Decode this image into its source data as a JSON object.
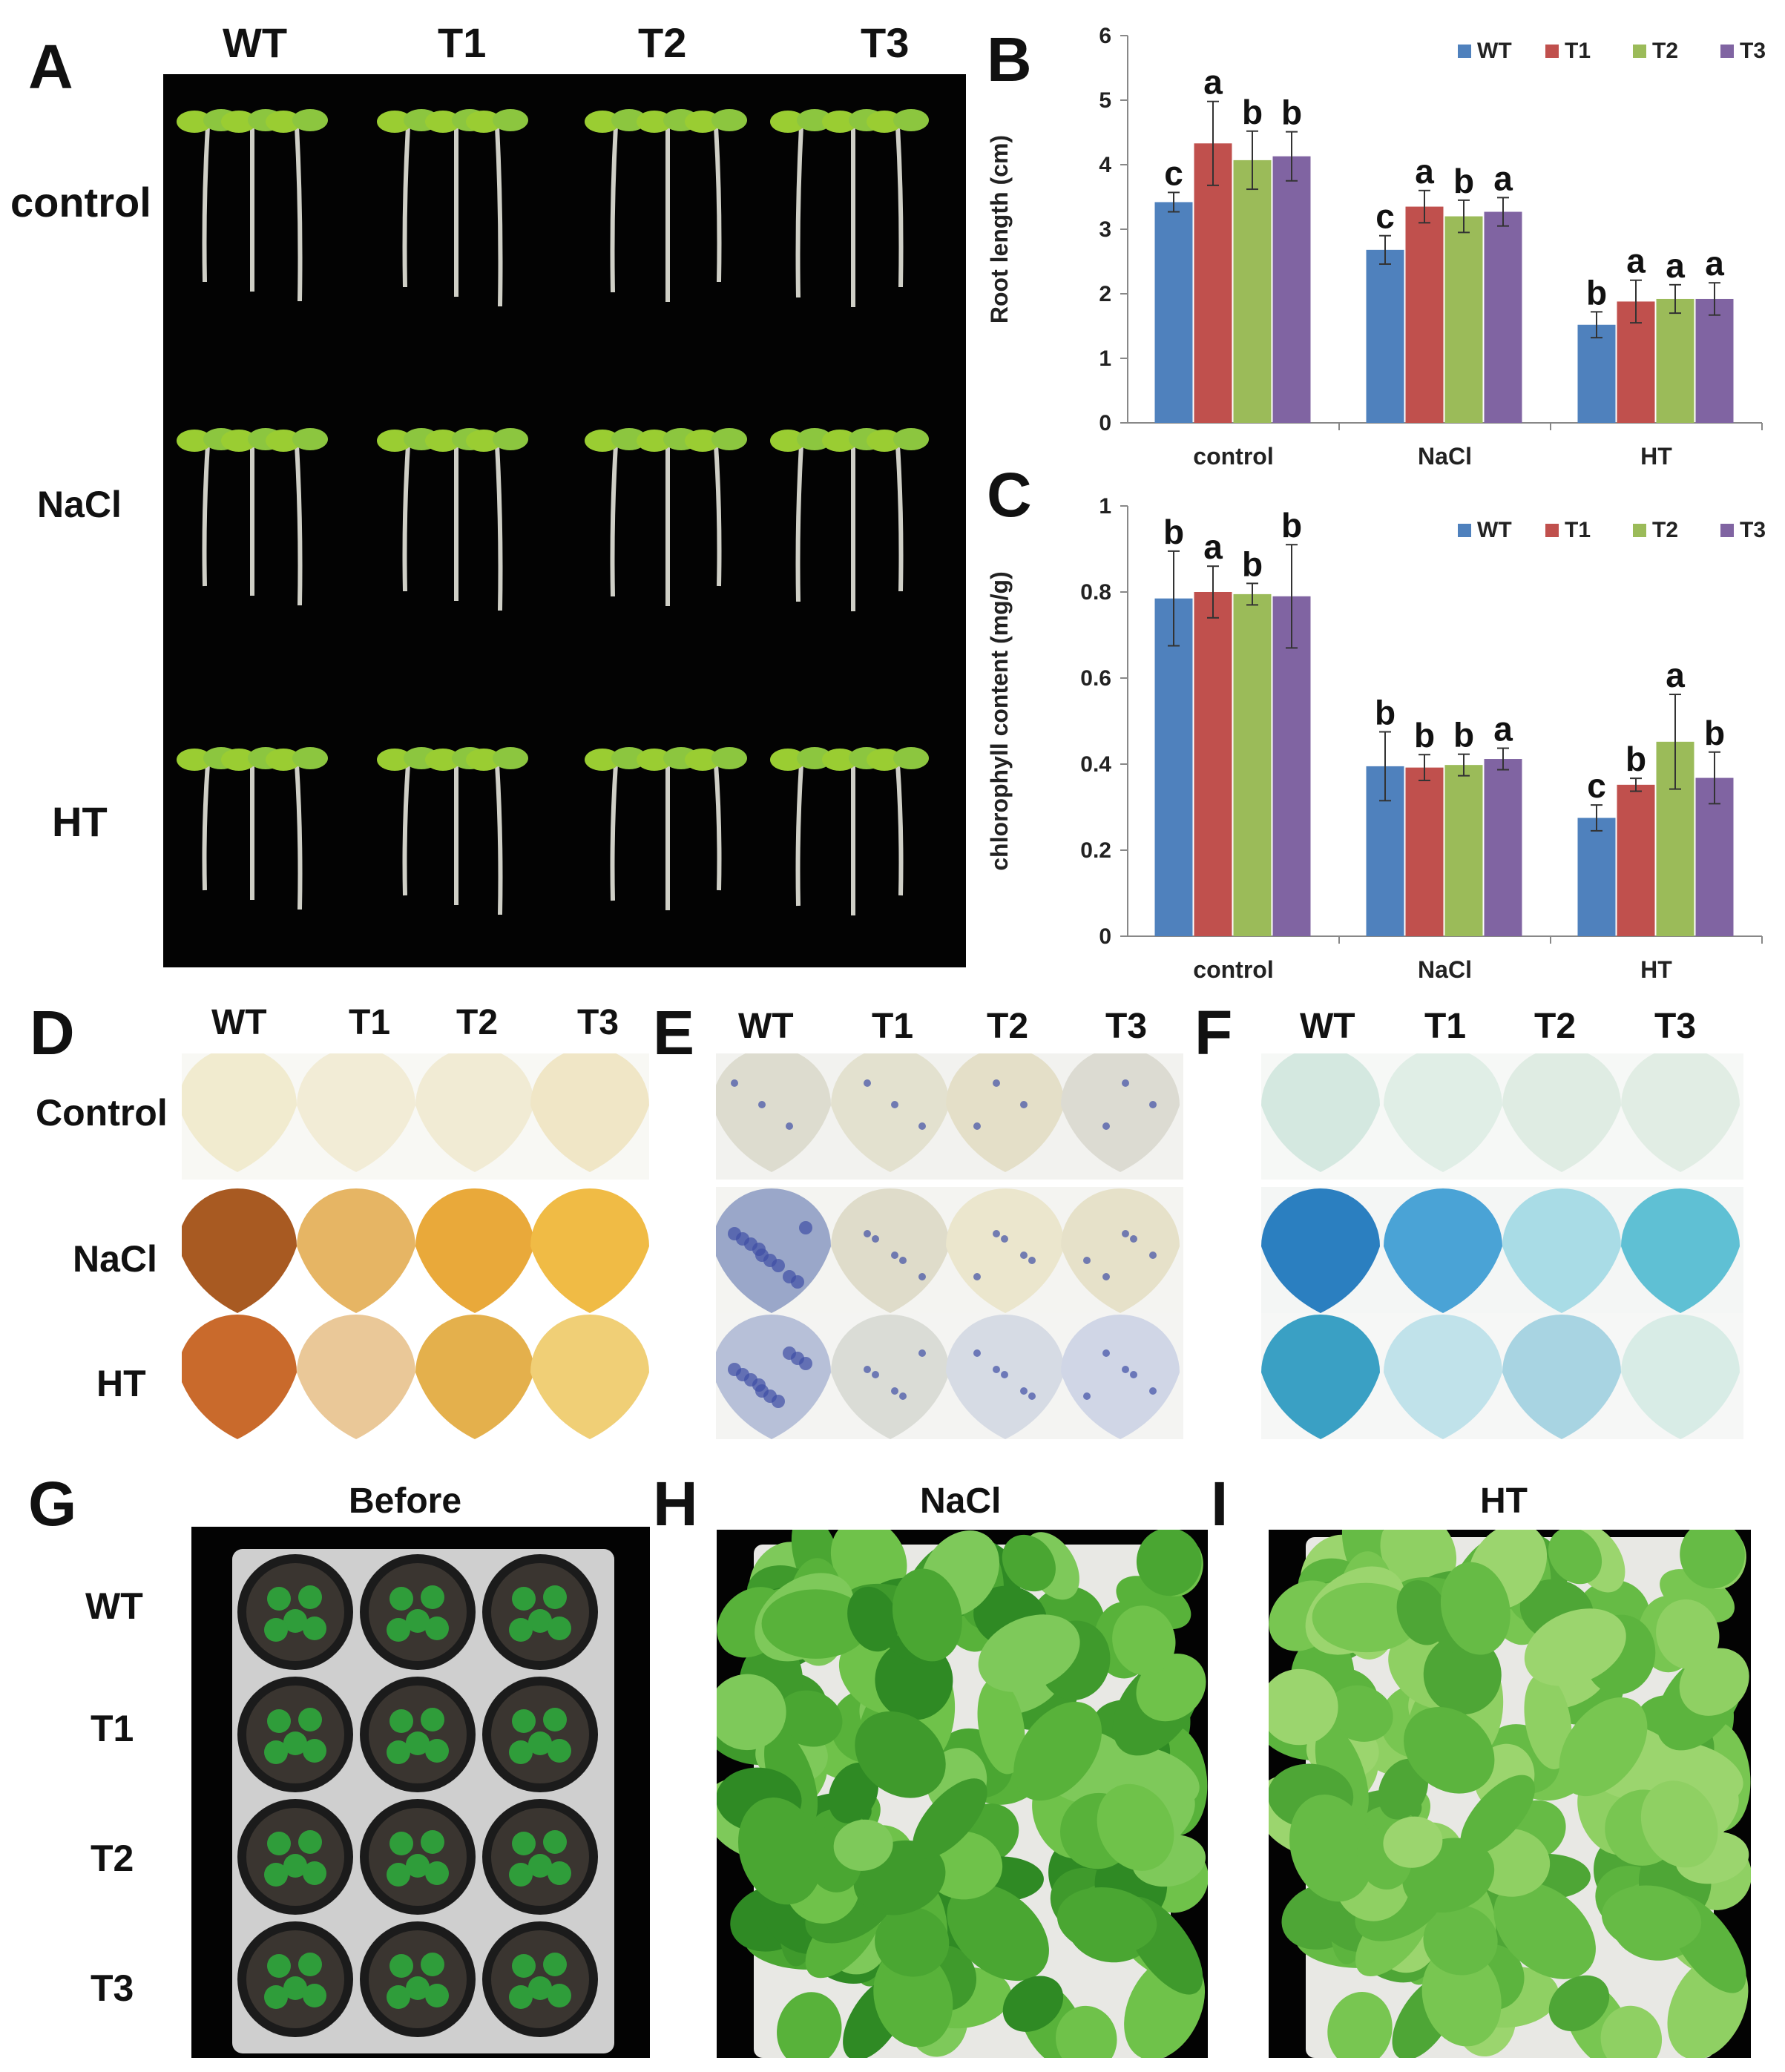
{
  "panel_letters": {
    "A": "A",
    "B": "B",
    "C": "C",
    "D": "D",
    "E": "E",
    "F": "F",
    "G": "G",
    "H": "H",
    "I": "I"
  },
  "panel_A": {
    "columns": [
      "WT",
      "T1",
      "T2",
      "T3"
    ],
    "rows": [
      "control",
      "NaCl",
      "HT"
    ]
  },
  "panel_D": {
    "columns": [
      "WT",
      "T1",
      "T2",
      "T3"
    ],
    "rows": [
      "Control",
      "NaCl",
      "HT"
    ]
  },
  "panel_E": {
    "columns": [
      "WT",
      "T1",
      "T2",
      "T3"
    ]
  },
  "panel_F": {
    "columns": [
      "WT",
      "T1",
      "T2",
      "T3"
    ]
  },
  "panel_G": {
    "title": "Before",
    "rows": [
      "WT",
      "T1",
      "T2",
      "T3"
    ]
  },
  "panel_H": {
    "title": "NaCl"
  },
  "panel_I": {
    "title": "HT"
  },
  "colors": {
    "WT": "#4f81bd",
    "T1": "#c0504d",
    "T2": "#9bbb59",
    "T3": "#8064a2"
  },
  "chart_data": [
    {
      "panel": "B",
      "type": "bar",
      "ylabel": "Root length (cm)",
      "xlabel": "",
      "ylim": [
        0,
        6
      ],
      "yticks": [
        0,
        1,
        2,
        3,
        4,
        5,
        6
      ],
      "categories": [
        "control",
        "NaCl",
        "HT"
      ],
      "legend": "top-right",
      "grid": false,
      "series": [
        {
          "name": "WT",
          "values": [
            3.42,
            2.68,
            1.52
          ],
          "errors": [
            0.15,
            0.22,
            0.2
          ],
          "letters": [
            "c",
            "c",
            "b"
          ]
        },
        {
          "name": "T1",
          "values": [
            4.33,
            3.35,
            1.88
          ],
          "errors": [
            0.65,
            0.25,
            0.33
          ],
          "letters": [
            "a",
            "a",
            "a"
          ]
        },
        {
          "name": "T2",
          "values": [
            4.07,
            3.2,
            1.92
          ],
          "errors": [
            0.45,
            0.25,
            0.22
          ],
          "letters": [
            "b",
            "b",
            "a"
          ]
        },
        {
          "name": "T3",
          "values": [
            4.13,
            3.27,
            1.92
          ],
          "errors": [
            0.38,
            0.22,
            0.25
          ],
          "letters": [
            "b",
            "a",
            "a"
          ]
        }
      ]
    },
    {
      "panel": "C",
      "type": "bar",
      "ylabel": "chlorophyll content (mg/g)",
      "xlabel": "",
      "ylim": [
        0,
        1
      ],
      "yticks": [
        0,
        0.2,
        0.4,
        0.6,
        0.8,
        1
      ],
      "categories": [
        "control",
        "NaCl",
        "HT"
      ],
      "legend": "top-right",
      "grid": false,
      "series": [
        {
          "name": "WT",
          "values": [
            0.785,
            0.395,
            0.275
          ],
          "errors": [
            0.11,
            0.08,
            0.03
          ],
          "letters": [
            "b",
            "b",
            "c"
          ]
        },
        {
          "name": "T1",
          "values": [
            0.8,
            0.392,
            0.352
          ],
          "errors": [
            0.06,
            0.03,
            0.015
          ],
          "letters": [
            "a",
            "b",
            "b"
          ]
        },
        {
          "name": "T2",
          "values": [
            0.795,
            0.398,
            0.452
          ],
          "errors": [
            0.025,
            0.025,
            0.11
          ],
          "letters": [
            "b",
            "b",
            "a"
          ]
        },
        {
          "name": "T3",
          "values": [
            0.79,
            0.412,
            0.368
          ],
          "errors": [
            0.12,
            0.025,
            0.06
          ],
          "letters": [
            "b",
            "a",
            "b"
          ]
        }
      ]
    }
  ]
}
